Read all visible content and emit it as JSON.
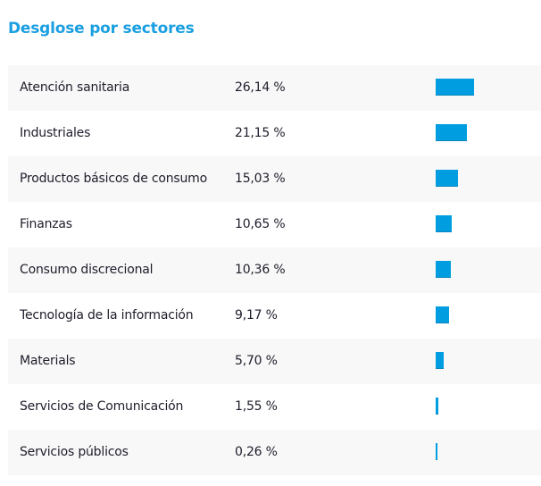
{
  "title": "Desglose por sectores",
  "chart_data": {
    "type": "bar",
    "orientation": "horizontal",
    "color": "#009ee0",
    "categories": [
      "Atención sanitaria",
      "Industriales",
      "Productos básicos de consumo",
      "Finanzas",
      "Consumo discrecional",
      "Tecnología de la información",
      "Materials",
      "Servicios de Comunicación",
      "Servicios públicos"
    ],
    "values": [
      26.14,
      21.15,
      15.03,
      10.65,
      10.36,
      9.17,
      5.7,
      1.55,
      0.26
    ],
    "labels": [
      "26,14 %",
      "21,15 %",
      "15,03 %",
      "10,65 %",
      "10,36 %",
      "9,17 %",
      "5,70 %",
      "1,55 %",
      "0,26 %"
    ]
  }
}
